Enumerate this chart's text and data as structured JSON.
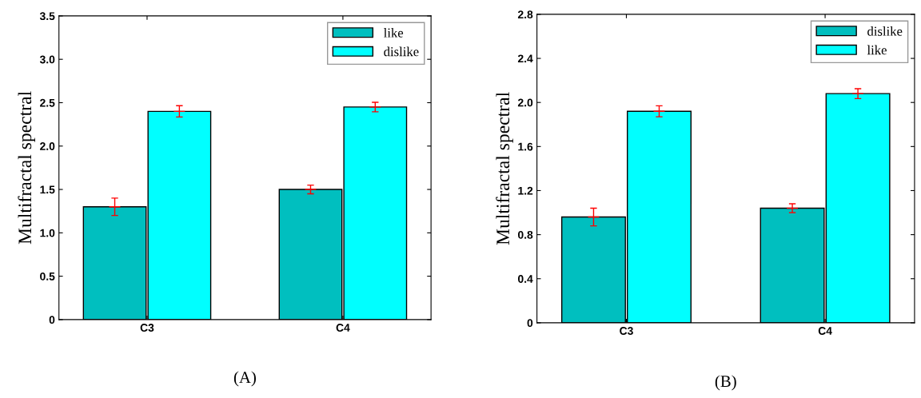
{
  "chart_data": [
    {
      "type": "bar",
      "ylabel": "Multifractal spectral",
      "categories": [
        "C3",
        "C4"
      ],
      "legend": "top right",
      "ylim": [
        0,
        3.5
      ],
      "yticks": [
        0,
        0.5,
        {
          "value": 1,
          "label": "1.0"
        },
        1.5,
        {
          "value": 2,
          "label": "2.0"
        },
        2.5,
        {
          "value": 3,
          "label": "3.0"
        },
        3.5
      ],
      "series": [
        {
          "name": "like",
          "color": "#00bfbf",
          "values": [
            1.3,
            1.5
          ],
          "errors": [
            0.1,
            0.05
          ]
        },
        {
          "name": "dislike",
          "color": "#00ffff",
          "values": [
            2.4,
            2.45
          ],
          "errors": [
            0.065,
            0.055
          ]
        }
      ],
      "annotations": [
        "(A)"
      ]
    },
    {
      "type": "bar",
      "ylabel": "Multifractal spectral",
      "categories": [
        "C3",
        "C4"
      ],
      "legend": "top right",
      "ylim": [
        0,
        2.8
      ],
      "yticks": [
        0,
        0.4,
        0.8,
        1.2,
        1.6,
        {
          "value": 2,
          "label": "2.0"
        },
        2.4,
        2.8
      ],
      "series": [
        {
          "name": "dislike",
          "color": "#00bfbf",
          "values": [
            0.96,
            1.04
          ],
          "errors": [
            0.08,
            0.04
          ]
        },
        {
          "name": "like",
          "color": "#00ffff",
          "values": [
            1.92,
            2.08
          ],
          "errors": [
            0.05,
            0.045
          ]
        }
      ],
      "annotations": [
        "(B)"
      ]
    }
  ]
}
